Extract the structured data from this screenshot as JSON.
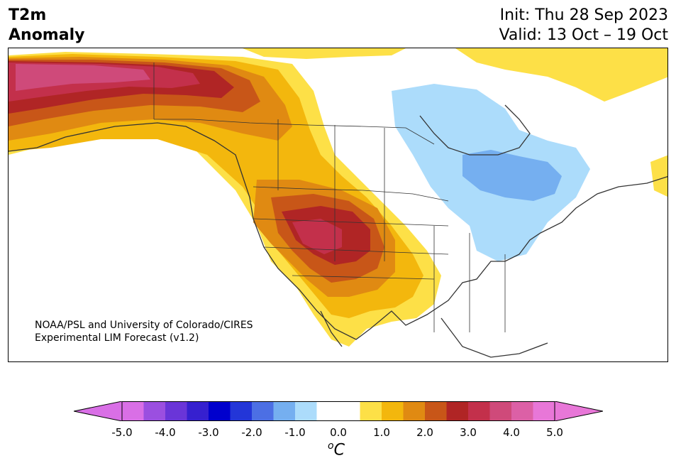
{
  "header": {
    "variable": "T2m",
    "variable_line2": "Anomaly",
    "init": "Init: Thu 28 Sep 2023",
    "valid": "Valid: 13 Oct – 19 Oct"
  },
  "credit": {
    "line1": "NOAA/PSL and University of Colorado/CIRES",
    "line2": "Experimental LIM Forecast (v1.2)"
  },
  "colorbar": {
    "unit": "C",
    "unit_prefix": "o",
    "ticks": [
      "-5.0",
      "-4.0",
      "-3.0",
      "-2.0",
      "-1.0",
      "0.0",
      "1.0",
      "2.0",
      "3.0",
      "4.0",
      "5.0"
    ],
    "colors": [
      "#d96fe6",
      "#9b4fe0",
      "#6a35d8",
      "#3620cf",
      "#0000cd",
      "#2336d8",
      "#4c6fe4",
      "#75aff0",
      "#acdcfb",
      "#ffffff",
      "#ffffff",
      "#fde047",
      "#f3b70d",
      "#e08a12",
      "#c85618",
      "#b02525",
      "#c3304b",
      "#cf4a7a",
      "#dc60a6",
      "#e877d8"
    ],
    "min_arrow_color": "#d96fe6",
    "max_arrow_color": "#e877d8"
  },
  "map": {
    "region": "North America",
    "land_color": "#ffffff",
    "water_color": "#ffffff",
    "coast_color": "#333333"
  }
}
